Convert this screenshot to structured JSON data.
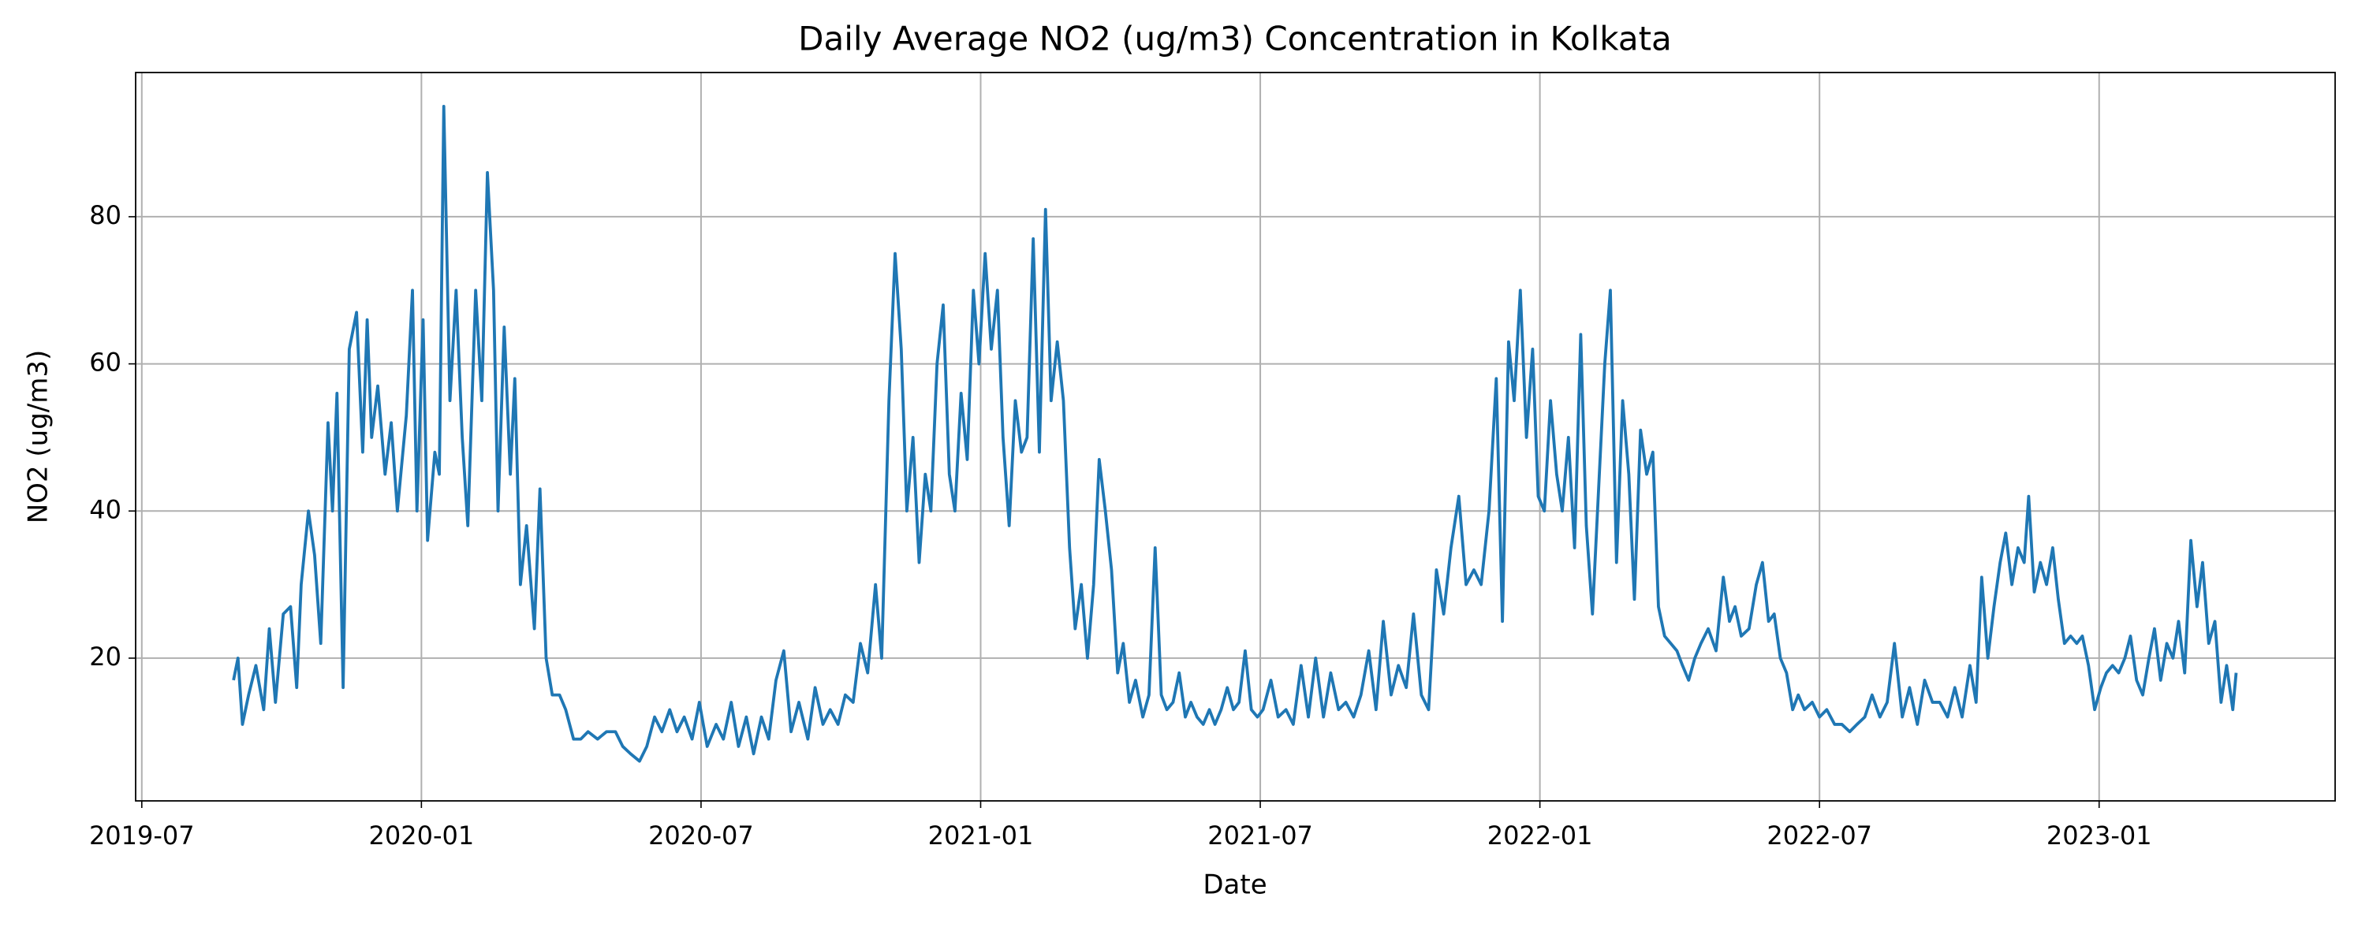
{
  "chart_data": {
    "type": "line",
    "title": "Daily Average NO2 (ug/m3) Concentration in Kolkata",
    "xlabel": "Date",
    "ylabel": "NO2 (ug/m3)",
    "color": "#1f77b4",
    "grid": true,
    "xlim": [
      2019.489,
      2023.422
    ],
    "ylim": [
      0.6,
      99.6
    ],
    "xticks": [
      {
        "value": 2019.5,
        "label": "2019-07"
      },
      {
        "value": 2020.0,
        "label": "2020-01"
      },
      {
        "value": 2020.5,
        "label": "2020-07"
      },
      {
        "value": 2021.0,
        "label": "2021-01"
      },
      {
        "value": 2021.5,
        "label": "2021-07"
      },
      {
        "value": 2022.0,
        "label": "2022-01"
      },
      {
        "value": 2022.5,
        "label": "2022-07"
      },
      {
        "value": 2023.0,
        "label": "2023-01"
      }
    ],
    "yticks": [
      20,
      40,
      60,
      80
    ],
    "x": [
      2019.664,
      2019.672,
      2019.68,
      2019.691,
      2019.704,
      2019.718,
      2019.728,
      2019.739,
      2019.753,
      2019.766,
      2019.777,
      2019.785,
      2019.798,
      2019.809,
      2019.82,
      2019.833,
      2019.841,
      2019.849,
      2019.86,
      2019.871,
      2019.884,
      2019.895,
      2019.903,
      2019.911,
      2019.922,
      2019.935,
      2019.946,
      2019.957,
      2019.973,
      2019.984,
      2019.992,
      2020.003,
      2020.011,
      2020.024,
      2020.032,
      2020.04,
      2020.051,
      2020.062,
      2020.073,
      2020.083,
      2020.097,
      2020.108,
      2020.118,
      2020.129,
      2020.137,
      2020.148,
      2020.159,
      2020.167,
      2020.177,
      2020.188,
      2020.202,
      2020.212,
      2020.223,
      2020.234,
      2020.247,
      2020.258,
      2020.272,
      2020.285,
      2020.298,
      2020.315,
      2020.331,
      2020.347,
      2020.36,
      2020.374,
      2020.39,
      2020.403,
      2020.417,
      2020.43,
      2020.444,
      2020.457,
      2020.47,
      2020.484,
      2020.497,
      2020.511,
      2020.527,
      2020.54,
      2020.554,
      2020.567,
      2020.581,
      2020.594,
      2020.608,
      2020.621,
      2020.634,
      2020.648,
      2020.661,
      2020.675,
      2020.691,
      2020.704,
      2020.718,
      2020.731,
      2020.745,
      2020.758,
      2020.772,
      2020.785,
      2020.798,
      2020.812,
      2020.823,
      2020.836,
      2020.847,
      2020.858,
      2020.868,
      2020.879,
      2020.89,
      2020.901,
      2020.911,
      2020.922,
      2020.933,
      2020.944,
      2020.954,
      2020.965,
      2020.976,
      2020.987,
      2020.997,
      2021.008,
      2021.019,
      2021.03,
      2021.04,
      2021.051,
      2021.062,
      2021.073,
      2021.083,
      2021.094,
      2021.105,
      2021.116,
      2021.126,
      2021.137,
      2021.148,
      2021.159,
      2021.169,
      2021.18,
      2021.191,
      2021.202,
      2021.212,
      2021.223,
      2021.234,
      2021.245,
      2021.255,
      2021.266,
      2021.277,
      2021.29,
      2021.301,
      2021.312,
      2021.323,
      2021.333,
      2021.344,
      2021.355,
      2021.366,
      2021.376,
      2021.387,
      2021.398,
      2021.409,
      2021.419,
      2021.43,
      2021.441,
      2021.452,
      2021.462,
      2021.473,
      2021.484,
      2021.495,
      2021.505,
      2021.519,
      2021.532,
      2021.546,
      2021.559,
      2021.573,
      2021.586,
      2021.599,
      2021.613,
      2021.626,
      2021.64,
      2021.653,
      2021.667,
      2021.68,
      2021.694,
      2021.707,
      2021.72,
      2021.734,
      2021.747,
      2021.761,
      2021.774,
      2021.788,
      2021.801,
      2021.815,
      2021.828,
      2021.841,
      2021.855,
      2021.868,
      2021.882,
      2021.895,
      2021.909,
      2021.922,
      2021.933,
      2021.944,
      2021.954,
      2021.965,
      2021.976,
      2021.987,
      2021.997,
      2022.008,
      2022.019,
      2022.03,
      2022.04,
      2022.051,
      2022.062,
      2022.073,
      2022.083,
      2022.094,
      2022.105,
      2022.116,
      2022.126,
      2022.137,
      2022.148,
      2022.159,
      2022.169,
      2022.18,
      2022.191,
      2022.202,
      2022.212,
      2022.223,
      2022.234,
      2022.245,
      2022.255,
      2022.266,
      2022.277,
      2022.288,
      2022.301,
      2022.315,
      2022.328,
      2022.339,
      2022.349,
      2022.36,
      2022.374,
      2022.387,
      2022.398,
      2022.409,
      2022.419,
      2022.43,
      2022.441,
      2022.452,
      2022.462,
      2022.473,
      2022.487,
      2022.5,
      2022.513,
      2022.527,
      2022.54,
      2022.554,
      2022.567,
      2022.581,
      2022.594,
      2022.608,
      2022.621,
      2022.634,
      2022.648,
      2022.661,
      2022.675,
      2022.688,
      2022.702,
      2022.715,
      2022.729,
      2022.742,
      2022.755,
      2022.769,
      2022.78,
      2022.79,
      2022.801,
      2022.812,
      2022.823,
      2022.833,
      2022.844,
      2022.855,
      2022.866,
      2022.874,
      2022.884,
      2022.895,
      2022.906,
      2022.917,
      2022.927,
      2022.938,
      2022.949,
      2022.96,
      2022.97,
      2022.981,
      2022.992,
      2023.003,
      2023.013,
      2023.024,
      2023.035,
      2023.046,
      2023.056,
      2023.067,
      2023.078,
      2023.089,
      2023.099,
      2023.11,
      2023.121,
      2023.132,
      2023.142,
      2023.153,
      2023.164,
      2023.175,
      2023.185,
      2023.196,
      2023.207,
      2023.218,
      2023.228,
      2023.239,
      2023.245
    ],
    "values": [
      17,
      20,
      11,
      15,
      19,
      13,
      24,
      14,
      26,
      27,
      16,
      30,
      40,
      34,
      22,
      52,
      40,
      56,
      16,
      62,
      67,
      48,
      66,
      50,
      57,
      45,
      52,
      40,
      53,
      70,
      40,
      66,
      36,
      48,
      45,
      95,
      55,
      70,
      50,
      38,
      70,
      55,
      86,
      70,
      40,
      65,
      45,
      58,
      30,
      38,
      24,
      43,
      20,
      15,
      15,
      13,
      9,
      9,
      10,
      9,
      10,
      10,
      8,
      7,
      6,
      8,
      12,
      10,
      13,
      10,
      12,
      9,
      14,
      8,
      11,
      9,
      14,
      8,
      12,
      7,
      12,
      9,
      17,
      21,
      10,
      14,
      9,
      16,
      11,
      13,
      11,
      15,
      14,
      22,
      18,
      30,
      20,
      55,
      75,
      62,
      40,
      50,
      33,
      45,
      40,
      60,
      68,
      45,
      40,
      56,
      47,
      70,
      60,
      75,
      62,
      70,
      50,
      38,
      55,
      48,
      50,
      77,
      48,
      81,
      55,
      63,
      55,
      35,
      24,
      30,
      20,
      30,
      47,
      40,
      32,
      18,
      22,
      14,
      17,
      12,
      15,
      35,
      15,
      13,
      14,
      18,
      12,
      14,
      12,
      11,
      13,
      11,
      13,
      16,
      13,
      14,
      21,
      13,
      12,
      13,
      17,
      12,
      13,
      11,
      19,
      12,
      20,
      12,
      18,
      13,
      14,
      12,
      15,
      21,
      13,
      25,
      15,
      19,
      16,
      26,
      15,
      13,
      32,
      26,
      35,
      42,
      30,
      32,
      30,
      40,
      58,
      25,
      63,
      55,
      70,
      50,
      62,
      42,
      40,
      55,
      45,
      40,
      50,
      35,
      64,
      38,
      26,
      43,
      60,
      70,
      33,
      55,
      45,
      28,
      51,
      45,
      48,
      27,
      23,
      22,
      21,
      19,
      17,
      20,
      22,
      24,
      21,
      31,
      25,
      27,
      23,
      24,
      30,
      33,
      25,
      26,
      20,
      18,
      13,
      15,
      13,
      14,
      12,
      13,
      11,
      11,
      10,
      11,
      12,
      15,
      12,
      14,
      22,
      12,
      16,
      11,
      17,
      14,
      14,
      12,
      16,
      12,
      19,
      14,
      31,
      20,
      27,
      33,
      37,
      30,
      35,
      33,
      42,
      29,
      33,
      30,
      35,
      28,
      22,
      23,
      22,
      23,
      19,
      13,
      16,
      18,
      19,
      18,
      20,
      23,
      17,
      15,
      20,
      24,
      17,
      22,
      20,
      25,
      18,
      36,
      27,
      33,
      22,
      25,
      14,
      19,
      13,
      18
    ]
  }
}
